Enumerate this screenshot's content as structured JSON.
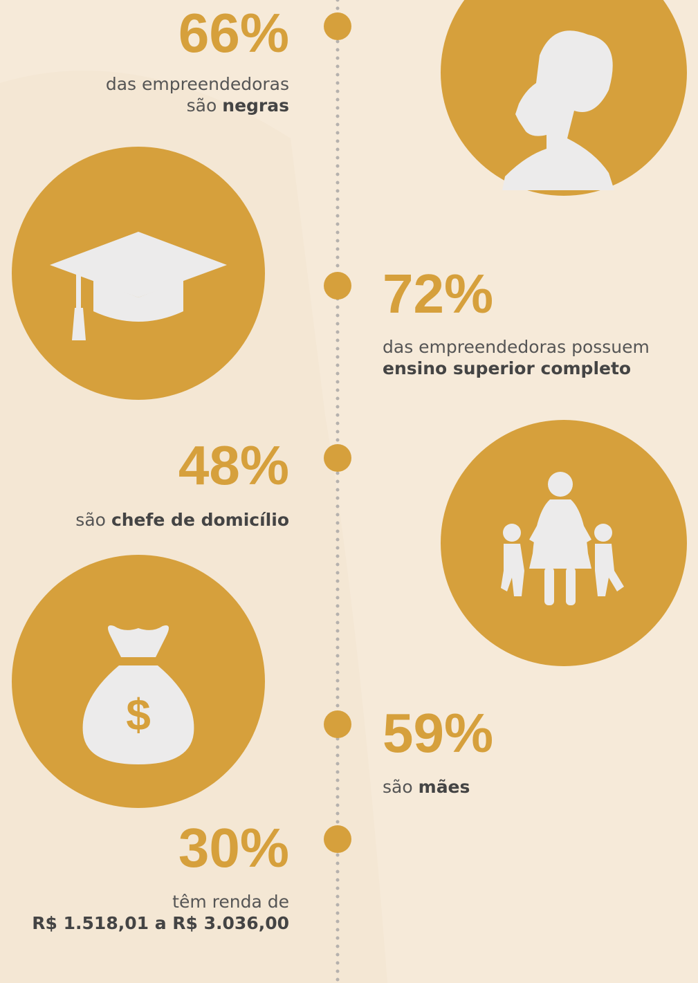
{
  "items": [
    {
      "stat": "66%",
      "lines": [
        [
          {
            "text": "das empreendedoras"
          }
        ],
        [
          {
            "text": "são"
          },
          {
            "text": "negras",
            "bold": true
          }
        ]
      ]
    },
    {
      "stat": "72%",
      "lines": [
        [
          {
            "text": "das empreendedoras possuem"
          }
        ],
        [
          {
            "text": "ensino superior completo",
            "bold": true
          }
        ]
      ]
    },
    {
      "stat": "48%",
      "lines": [
        [
          {
            "text": "são"
          },
          {
            "text": "chefe de domicílio",
            "bold": true
          }
        ]
      ]
    },
    {
      "stat": "59%",
      "lines": [
        [
          {
            "text": "são"
          },
          {
            "text": "mães",
            "bold": true
          }
        ]
      ]
    },
    {
      "stat": "30%",
      "lines": [
        [
          {
            "text": "têm renda de"
          }
        ],
        [
          {
            "text": "R$ 1.518,01 a R$ 3.036,00",
            "bold": true
          }
        ]
      ]
    }
  ]
}
